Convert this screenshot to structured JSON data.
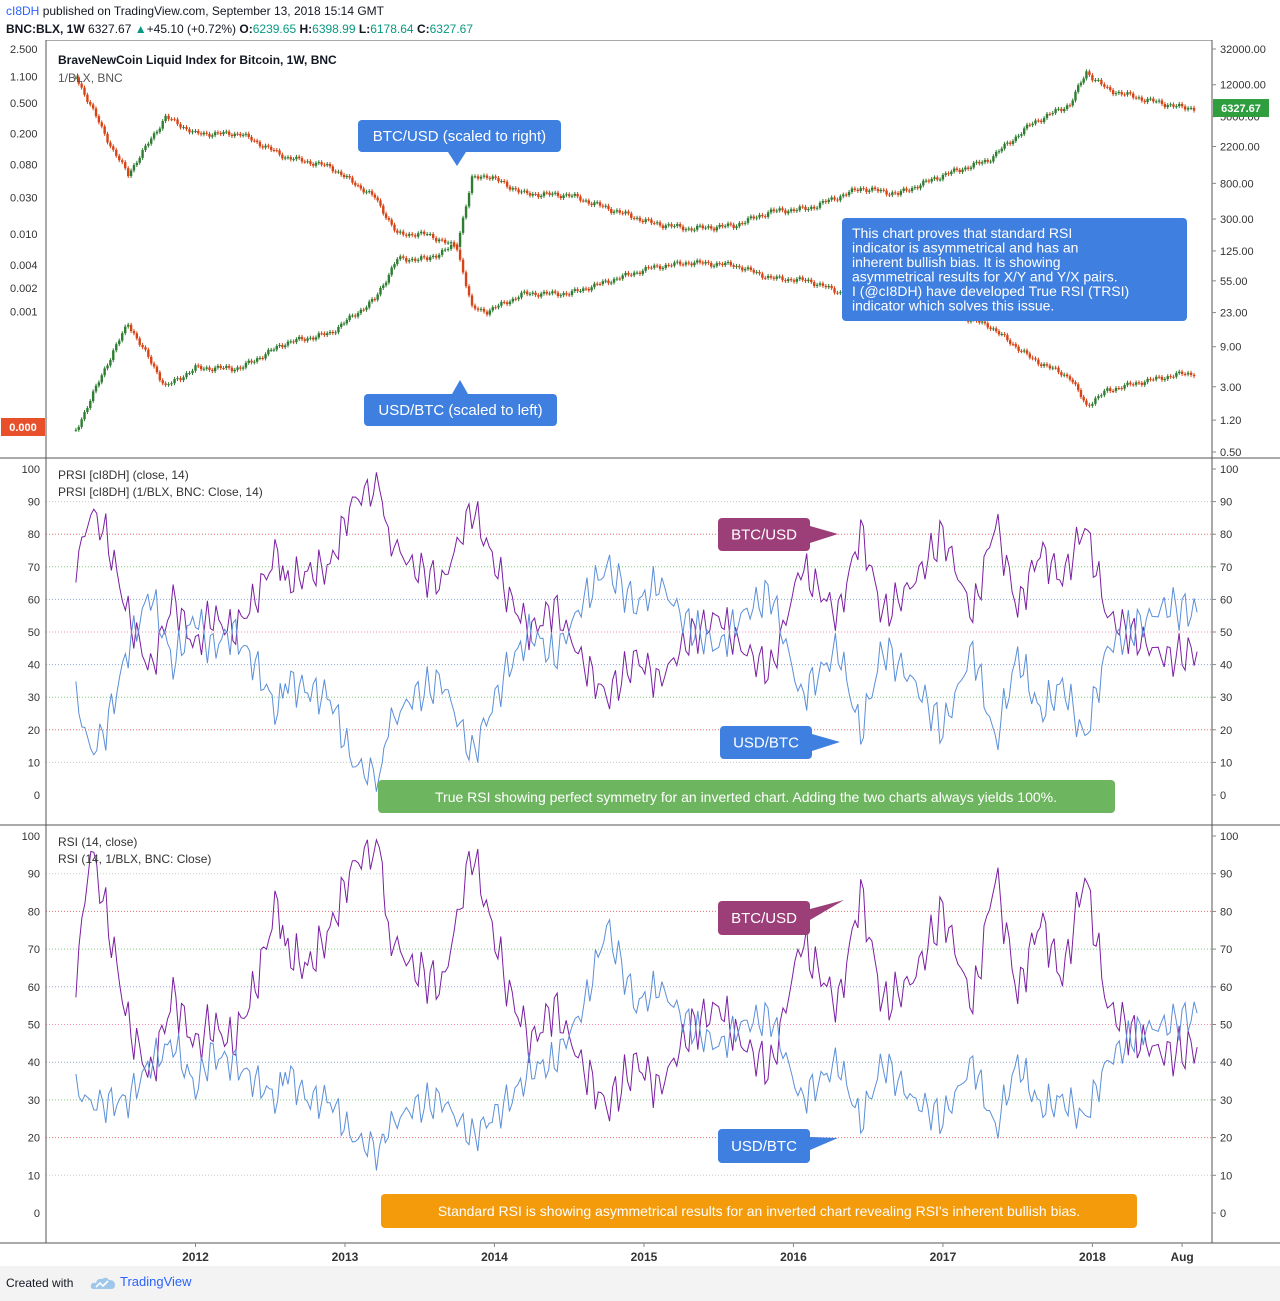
{
  "header": {
    "author": "cI8DH",
    "published": "published on TradingView.com, September 13, 2018 15:14 GMT",
    "symbol": "BNC:BLX, 1W",
    "price": "6327.67",
    "change": "+45.10 (+0.72%)",
    "o_label": "O:",
    "o": "6239.65",
    "h_label": "H:",
    "h": "6398.99",
    "l_label": "L:",
    "l": "6178.64",
    "c_label": "C:",
    "c": "6327.67"
  },
  "footer": {
    "created": "Created with",
    "brand": "TradingView",
    "brand_icon": "tradingview-cloud-icon"
  },
  "colors": {
    "up": "#2e7d32",
    "down": "#d84315",
    "purple": "#7b1fa2",
    "blue": "#5b8fd8",
    "callout_blue": "#3f7fe0",
    "callout_purple": "#9c3f78",
    "green_box": "#6db55e",
    "orange_box": "#f49b0b",
    "price_tag": "#2e9e3f",
    "left_tag": "#e8502c"
  },
  "chart_data": [
    {
      "type": "candlestick",
      "title": "BraveNewCoin Liquid Index for Bitcoin, 1W, BNC",
      "subtitle": "1/BLX, BNC",
      "scale": "log",
      "x_ticks": [
        "2012",
        "2013",
        "2014",
        "2015",
        "2016",
        "2017",
        "2018",
        "Aug"
      ],
      "left_axis_ticks": [
        "2.500",
        "1.100",
        "0.500",
        "0.200",
        "0.080",
        "0.030",
        "0.010",
        "0.004",
        "0.002",
        "0.001"
      ],
      "right_axis_ticks": [
        "32000.00",
        "12000.00",
        "5000.00",
        "2200.00",
        "800.00",
        "300.00",
        "125.00",
        "55.00",
        "23.00",
        "9.00",
        "3.00",
        "1.20",
        "0.50"
      ],
      "last_price_tag": "6327.67",
      "left_value_tag": "0.000",
      "series": [
        {
          "name": "BTC/USD",
          "axis": "right",
          "x": [
            2011.2,
            2011.45,
            2011.55,
            2011.8,
            2012.0,
            2012.3,
            2012.6,
            2012.9,
            2013.2,
            2013.35,
            2013.55,
            2013.75,
            2013.85,
            2013.95,
            2014.2,
            2014.5,
            2014.8,
            2015.05,
            2015.3,
            2015.6,
            2015.85,
            2016.1,
            2016.45,
            2016.7,
            2017.0,
            2017.3,
            2017.6,
            2017.85,
            2017.96,
            2018.1,
            2018.35,
            2018.6,
            2018.7
          ],
          "values": [
            0.9,
            8,
            17,
            3,
            5,
            5,
            10,
            13,
            33,
            100,
            100,
            150,
            900,
            1000,
            600,
            580,
            380,
            270,
            230,
            250,
            370,
            400,
            700,
            600,
            1000,
            1500,
            4200,
            7000,
            17000,
            10500,
            8000,
            6400,
            6327
          ]
        },
        {
          "name": "USD/BTC",
          "axis": "left",
          "x": [
            2011.2,
            2011.45,
            2011.55,
            2011.8,
            2012.0,
            2012.3,
            2012.6,
            2012.9,
            2013.2,
            2013.35,
            2013.55,
            2013.75,
            2013.85,
            2013.95,
            2014.2,
            2014.5,
            2014.8,
            2015.05,
            2015.3,
            2015.6,
            2015.85,
            2016.1,
            2016.45,
            2016.7,
            2017.0,
            2017.3,
            2017.6,
            2017.85,
            2017.96,
            2018.1,
            2018.35,
            2018.6,
            2018.7
          ],
          "values": [
            1.1,
            0.12,
            0.06,
            0.33,
            0.2,
            0.2,
            0.1,
            0.075,
            0.03,
            0.01,
            0.01,
            0.0067,
            0.0011,
            0.001,
            0.0017,
            0.0017,
            0.0026,
            0.0037,
            0.0043,
            0.004,
            0.0027,
            0.0025,
            0.0014,
            0.0017,
            0.001,
            0.00067,
            0.00024,
            0.00014,
            6e-05,
            9.5e-05,
            0.000125,
            0.000156,
            0.000158
          ]
        }
      ],
      "callouts": [
        "BTC/USD (scaled to right)",
        "USD/BTC (scaled to left)"
      ],
      "note": "This chart proves that standard RSI indicator is asymmetrical and has an inherent bullish bias. It is showing asymmetrical results for X/Y and Y/X pairs. I (@cI8DH) have developed True RSI (TRSI) indicator which solves this issue."
    },
    {
      "type": "line",
      "label1": "PRSI [cI8DH] (close, 14)",
      "label2": "PRSI [cI8DH] (1/BLX, BNC: Close, 14)",
      "ylim": [
        0,
        100
      ],
      "y_ticks": [
        100,
        90,
        80,
        70,
        60,
        50,
        40,
        30,
        20,
        10,
        0
      ],
      "series": [
        {
          "name": "BTC/USD",
          "x": [
            2011.2,
            2011.3,
            2011.4,
            2011.55,
            2011.7,
            2011.85,
            2012.0,
            2012.1,
            2012.25,
            2012.4,
            2012.55,
            2012.6,
            2012.75,
            2012.9,
            2013.05,
            2013.25,
            2013.27,
            2013.45,
            2013.65,
            2013.85,
            2014.1,
            2014.25,
            2014.4,
            2014.6,
            2014.75,
            2014.95,
            2015.1,
            2015.3,
            2015.5,
            2015.65,
            2015.85,
            2016.05,
            2016.3,
            2016.45,
            2016.6,
            2016.8,
            2017.0,
            2017.2,
            2017.35,
            2017.5,
            2017.65,
            2017.8,
            2017.95,
            2018.1,
            2018.3,
            2018.5,
            2018.7
          ],
          "values": [
            70,
            87,
            80,
            55,
            38,
            60,
            45,
            55,
            50,
            60,
            75,
            65,
            68,
            70,
            90,
            96,
            80,
            70,
            65,
            88,
            60,
            50,
            58,
            40,
            30,
            42,
            35,
            48,
            55,
            45,
            38,
            70,
            55,
            81,
            55,
            65,
            80,
            55,
            84,
            57,
            75,
            66,
            83,
            55,
            48,
            42,
            44
          ]
        },
        {
          "name": "USD/BTC",
          "x": [
            2011.2,
            2011.3,
            2011.4,
            2011.55,
            2011.7,
            2011.85,
            2012.0,
            2012.1,
            2012.25,
            2012.4,
            2012.55,
            2012.6,
            2012.75,
            2012.9,
            2013.05,
            2013.25,
            2013.27,
            2013.45,
            2013.65,
            2013.85,
            2014.1,
            2014.25,
            2014.4,
            2014.6,
            2014.75,
            2014.95,
            2015.1,
            2015.3,
            2015.5,
            2015.65,
            2015.85,
            2016.05,
            2016.3,
            2016.45,
            2016.6,
            2016.8,
            2017.0,
            2017.2,
            2017.35,
            2017.5,
            2017.65,
            2017.8,
            2017.95,
            2018.1,
            2018.3,
            2018.5,
            2018.7
          ],
          "values": [
            30,
            13,
            20,
            45,
            62,
            40,
            55,
            45,
            50,
            40,
            25,
            35,
            32,
            30,
            10,
            4,
            20,
            30,
            35,
            12,
            40,
            50,
            42,
            60,
            70,
            58,
            65,
            52,
            45,
            55,
            62,
            30,
            45,
            19,
            45,
            35,
            20,
            45,
            16,
            43,
            25,
            34,
            17,
            45,
            52,
            58,
            56
          ]
        }
      ],
      "callouts": [
        "BTC/USD",
        "USD/BTC"
      ],
      "note": "True RSI showing perfect symmetry for an inverted chart. Adding the two charts always yields 100%."
    },
    {
      "type": "line",
      "label1": "RSI (14, close)",
      "label2": "RSI (14, 1/BLX, BNC: Close)",
      "ylim": [
        0,
        100
      ],
      "y_ticks": [
        100,
        90,
        80,
        70,
        60,
        50,
        40,
        30,
        20,
        10,
        0
      ],
      "series": [
        {
          "name": "BTC/USD",
          "x": [
            2011.2,
            2011.3,
            2011.4,
            2011.55,
            2011.7,
            2011.85,
            2012.0,
            2012.1,
            2012.25,
            2012.4,
            2012.55,
            2012.6,
            2012.75,
            2012.9,
            2013.05,
            2013.25,
            2013.27,
            2013.45,
            2013.65,
            2013.85,
            2014.1,
            2014.25,
            2014.4,
            2014.6,
            2014.75,
            2014.95,
            2015.1,
            2015.3,
            2015.5,
            2015.65,
            2015.85,
            2016.05,
            2016.3,
            2016.45,
            2016.6,
            2016.8,
            2017.0,
            2017.2,
            2017.35,
            2017.5,
            2017.65,
            2017.8,
            2017.95,
            2018.1,
            2018.3,
            2018.5,
            2018.7
          ],
          "values": [
            62,
            97,
            80,
            50,
            36,
            58,
            44,
            50,
            45,
            60,
            83,
            70,
            65,
            75,
            92,
            99,
            75,
            65,
            60,
            96,
            58,
            45,
            55,
            38,
            28,
            40,
            33,
            48,
            55,
            45,
            38,
            72,
            55,
            85,
            55,
            62,
            80,
            55,
            90,
            58,
            78,
            62,
            90,
            55,
            46,
            42,
            44
          ]
        },
        {
          "name": "USD/BTC",
          "x": [
            2011.2,
            2011.3,
            2011.4,
            2011.55,
            2011.7,
            2011.85,
            2012.0,
            2012.1,
            2012.25,
            2012.4,
            2012.55,
            2012.6,
            2012.75,
            2012.9,
            2013.05,
            2013.25,
            2013.27,
            2013.45,
            2013.65,
            2013.85,
            2014.1,
            2014.25,
            2014.4,
            2014.6,
            2014.75,
            2014.95,
            2015.1,
            2015.3,
            2015.5,
            2015.65,
            2015.85,
            2016.05,
            2016.3,
            2016.45,
            2016.6,
            2016.8,
            2017.0,
            2017.2,
            2017.35,
            2017.5,
            2017.65,
            2017.8,
            2017.95,
            2018.1,
            2018.3,
            2018.5,
            2018.7
          ],
          "values": [
            33,
            29,
            29,
            30,
            40,
            45,
            33,
            42,
            40,
            35,
            30,
            38,
            30,
            30,
            20,
            16,
            22,
            28,
            30,
            20,
            30,
            38,
            40,
            55,
            76,
            55,
            60,
            50,
            44,
            50,
            52,
            30,
            40,
            24,
            40,
            30,
            25,
            40,
            22,
            40,
            28,
            30,
            25,
            40,
            48,
            50,
            53
          ]
        }
      ],
      "callouts": [
        "BTC/USD",
        "USD/BTC"
      ],
      "note": "Standard RSI is showing asymmetrical results for an inverted chart revealing RSI's inherent bullish bias."
    }
  ]
}
